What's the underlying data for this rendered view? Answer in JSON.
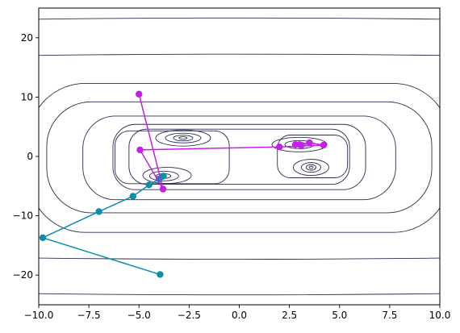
{
  "chart_data": {
    "type": "line",
    "title": "",
    "xlabel": "",
    "ylabel": "",
    "xlim": [
      -10,
      10
    ],
    "ylim": [
      -25,
      25
    ],
    "x_ticks": [
      -10.0,
      -7.5,
      -5.0,
      -2.5,
      0.0,
      2.5,
      5.0,
      7.5,
      10.0
    ],
    "x_tick_labels": [
      "−10.0",
      "−7.5",
      "−5.0",
      "−2.5",
      "0.0",
      "2.5",
      "5.0",
      "7.5",
      "10.0"
    ],
    "y_ticks": [
      -20,
      -10,
      0,
      10,
      20
    ],
    "y_tick_labels": [
      "−20",
      "−10",
      "0",
      "10",
      "20"
    ],
    "grid": false,
    "contour": {
      "description": "Himmelblau-like function contour lines",
      "color": "#2b2d4f",
      "minima": [
        [
          3.58,
          -1.85
        ],
        [
          -2.81,
          3.13
        ],
        [
          -3.78,
          -3.28
        ],
        [
          3.0,
          2.0
        ]
      ]
    },
    "series": [
      {
        "color": "#0a8fa8",
        "points": [
          [
            -3.95,
            -19.9
          ],
          [
            -9.8,
            -13.7
          ],
          [
            -7.0,
            -9.3
          ],
          [
            -5.3,
            -6.7
          ],
          [
            -4.5,
            -4.8
          ],
          [
            -4.0,
            -3.8
          ],
          [
            -3.85,
            -3.4
          ],
          [
            -3.78,
            -3.3
          ]
        ]
      },
      {
        "color": "#c41fe8",
        "points": [
          [
            -5.0,
            10.5
          ],
          [
            -3.8,
            -5.5
          ],
          [
            -4.95,
            1.1
          ],
          [
            2.0,
            1.6
          ],
          [
            4.2,
            1.9
          ],
          [
            3.5,
            2.3
          ],
          [
            2.8,
            2.0
          ],
          [
            3.1,
            1.9
          ],
          [
            3.0,
            2.0
          ]
        ]
      }
    ]
  }
}
